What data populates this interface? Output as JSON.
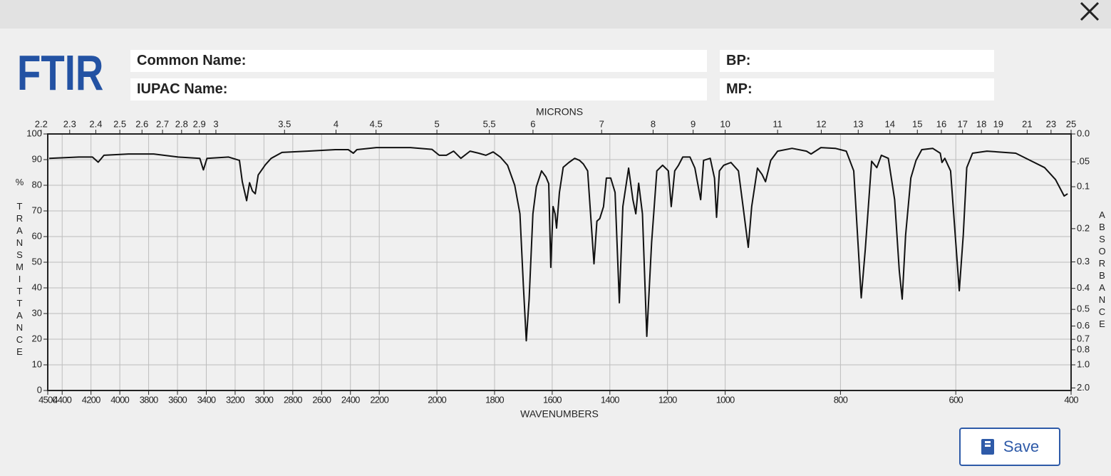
{
  "app": {
    "title": "FTIR"
  },
  "fields": [
    {
      "label": "Common Name:"
    },
    {
      "label": "IUPAC Name:"
    },
    {
      "label": "BP:"
    },
    {
      "label": "MP:"
    }
  ],
  "buttons": {
    "save": "Save"
  },
  "chart_data": {
    "type": "line",
    "x_label": "WAVENUMBERS",
    "x2_label": "MICRONS",
    "y_label": "% TRANSMITTANCE",
    "y2_label": "ABSORBANCE",
    "xlim": [
      4500,
      400
    ],
    "ylim": [
      0,
      100
    ],
    "x_scale_breaks": [
      2200,
      1000
    ],
    "xticks": [
      4500,
      4400,
      4200,
      4000,
      3800,
      3600,
      3400,
      3200,
      3000,
      2800,
      2600,
      2400,
      2200,
      2000,
      1800,
      1600,
      1400,
      1200,
      1000,
      800,
      600,
      400
    ],
    "yticks": [
      0,
      10,
      20,
      30,
      40,
      50,
      60,
      70,
      80,
      90,
      100
    ],
    "x2ticks": [
      2.2,
      2.3,
      2.4,
      2.5,
      2.6,
      2.7,
      2.8,
      2.9,
      3,
      3.5,
      4,
      4.5,
      5,
      5.5,
      6,
      7,
      8,
      9,
      10,
      11,
      12,
      13,
      14,
      15,
      16,
      17,
      18,
      19,
      21,
      23,
      25
    ],
    "y2_scale": "absorbance",
    "y2ticks": [
      {
        "value": 0,
        "label": "0.0"
      },
      {
        "value": 0.05,
        "label": ".05"
      },
      0.1,
      0.2,
      0.3,
      0.4,
      0.5,
      0.6,
      0.7,
      0.8,
      {
        "value": 1,
        "label": "1.0"
      },
      {
        "value": 2,
        "label": "2.0"
      }
    ],
    "grid": true,
    "series": [
      {
        "color": "#111111",
        "x": [
          4490,
          4285,
          4190,
          4150,
          4110,
          3940,
          3765,
          3595,
          3445,
          3420,
          3395,
          3245,
          3170,
          3150,
          3120,
          3100,
          3080,
          3060,
          3040,
          3015,
          2990,
          2950,
          2875,
          2700,
          2505,
          2415,
          2380,
          2355,
          2220,
          2092,
          2017,
          1992,
          1967,
          1942,
          1917,
          1885,
          1855,
          1830,
          1805,
          1780,
          1755,
          1730,
          1712,
          1700,
          1690,
          1680,
          1667,
          1655,
          1637,
          1622,
          1612,
          1605,
          1597,
          1590,
          1585,
          1575,
          1562,
          1542,
          1522,
          1505,
          1492,
          1477,
          1467,
          1455,
          1445,
          1435,
          1422,
          1412,
          1397,
          1382,
          1367,
          1355,
          1335,
          1320,
          1310,
          1300,
          1287,
          1272,
          1255,
          1237,
          1217,
          1197,
          1187,
          1175,
          1162,
          1147,
          1122,
          1105,
          1085,
          1075,
          1052,
          1037,
          1030,
          1020,
          1005,
          990,
          977,
          969,
          960,
          954,
          944,
          936,
          930,
          921,
          909,
          884,
          859,
          851,
          834,
          809,
          790,
          777,
          769,
          764,
          757,
          746,
          737,
          729,
          717,
          706,
          698,
          693,
          687,
          678,
          669,
          659,
          640,
          627,
          624,
          619,
          609,
          601,
          594,
          587,
          581,
          571,
          546,
          496,
          471,
          446,
          427,
          412,
          406
        ],
        "values": [
          90.5,
          91,
          91,
          89,
          91.7,
          92.2,
          92.2,
          91,
          90.5,
          86,
          90.5,
          91,
          89.7,
          81.4,
          74,
          81,
          77.8,
          76.7,
          84,
          86,
          88,
          90.5,
          92.8,
          93.3,
          93.9,
          93.9,
          92.5,
          93.9,
          94.7,
          94.7,
          94,
          91.7,
          91.7,
          93.3,
          90.5,
          93.3,
          92.5,
          91.7,
          93,
          91,
          87.8,
          80,
          68.9,
          41,
          19.4,
          35.6,
          68.9,
          79.4,
          85.6,
          83.3,
          80.6,
          48,
          71.7,
          68.9,
          63.3,
          77.2,
          87,
          88.9,
          90.5,
          89.7,
          88.3,
          85.6,
          68.9,
          49.4,
          66,
          67,
          71.7,
          82.8,
          82.8,
          77.2,
          34.2,
          71.7,
          86.7,
          74.4,
          68.9,
          80.8,
          68.9,
          21.1,
          57.8,
          85.6,
          87.8,
          85.6,
          71.7,
          85.6,
          87.8,
          91,
          91,
          86.7,
          74.4,
          89.7,
          90.5,
          82.8,
          67.5,
          85.6,
          87.8,
          88.9,
          85.6,
          71.7,
          55.8,
          71.7,
          86.7,
          84.2,
          81.4,
          89.7,
          93.3,
          94.4,
          93.3,
          92.2,
          94.7,
          94.4,
          93.3,
          85.6,
          55,
          36.1,
          55,
          89.4,
          86.9,
          91.7,
          90.5,
          74.4,
          46.7,
          35.6,
          60.6,
          82.8,
          89.7,
          93.9,
          94.4,
          92.5,
          88.9,
          90.5,
          85.6,
          60.6,
          38.9,
          60.6,
          86.9,
          92.5,
          93.3,
          92.5,
          89.7,
          86.9,
          82.2,
          75.8,
          76.7
        ]
      }
    ]
  }
}
